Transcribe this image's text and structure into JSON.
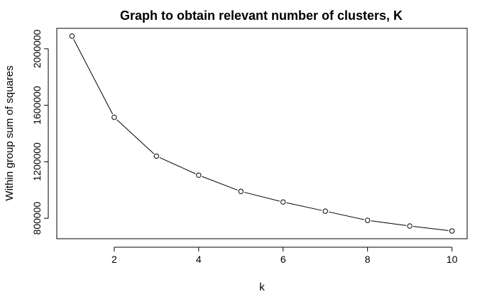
{
  "chart_data": {
    "type": "line",
    "title": "Graph to obtain relevant number of clusters, K",
    "xlabel": "k",
    "ylabel": "Within group sum of squares",
    "x": [
      1,
      2,
      3,
      4,
      5,
      6,
      7,
      8,
      9,
      10
    ],
    "y": [
      2090000,
      1515000,
      1240000,
      1105000,
      990000,
      915000,
      850000,
      785000,
      745000,
      710000
    ],
    "xlim": [
      0.64,
      10.36
    ],
    "ylim": [
      655000,
      2145000
    ],
    "xticks": [
      2,
      4,
      6,
      8,
      10
    ],
    "xtick_labels": [
      "2",
      "4",
      "6",
      "8",
      "10"
    ],
    "yticks": [
      800000,
      1200000,
      1600000,
      2000000
    ],
    "ytick_labels": [
      "800000",
      "1200000",
      "1600000",
      "2000000"
    ],
    "grid": false,
    "legend": "none",
    "markers": "open-circle",
    "colors": {
      "line": "#000000",
      "axes": "#000000",
      "background": "#ffffff"
    }
  }
}
